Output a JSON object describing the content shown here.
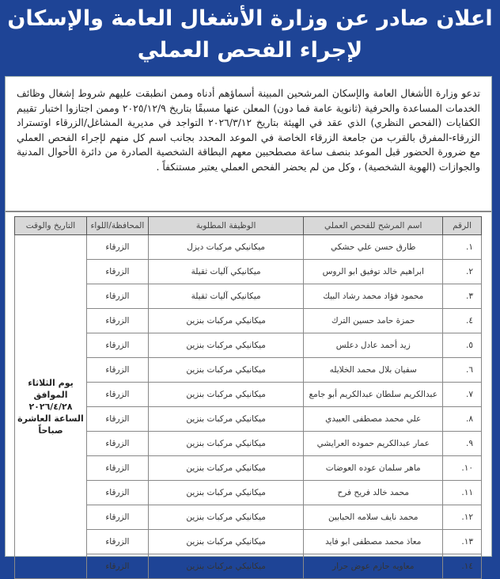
{
  "header": {
    "line1": "اعلان صادر عن وزارة الأشغال العامة والإسكان",
    "line2": "لإجراء الفحص العملي"
  },
  "body_text": "تدعو وزارة الأشغال العامة والإسكان المرشحين المبينة أسماؤهم أدناه وممن انطبقت عليهم شروط إشغال وظائف الخدمات المساعدة والحرفية (ثانوية عامة فما دون) المعلن عنها مسبقًا بتاريخ ٢٠٢٥/١٢/٩ وممن اجتازوا اختبار تقييم الكفايات (الفحص النظري) الذي عقد في الهيئة بتاريخ ٢٠٢٦/٣/١٢ التواجد في مديرية المشاغل/الزرقاء اوتستراد الزرقاء-المفرق بالقرب من جامعة الزرقاء الخاصة في الموعد المحدد بجانب اسم كل منهم لإجراء الفحص العملي مع ضرورة الحضور قبل الموعد بنصف ساعة مصطحبين معهم البطاقة الشخصية الصادرة من دائرة الأحوال المدنية والجوازات (الهوية الشخصية) ، وكل من لم يحضر الفحص العملي يعتبر مستنكفاً .",
  "table": {
    "headers": [
      "الرقم",
      "اسم المرشح للفحص العملي",
      "الوظيفة المطلوبة",
      "المحافظة/اللواء",
      "التاريخ والوقت"
    ],
    "date_cell": "يوم الثلاثاء الموافق ٢٠٢٦/٤/٢٨ الساعة العاشرة صباحاً",
    "rows": [
      {
        "num": "١.",
        "name": "طارق حسن علي حشكي",
        "job": "ميكانيكي مركبات ديزل",
        "gov": "الزرقاء"
      },
      {
        "num": "٢.",
        "name": "ابراهيم خالد توفيق ابو الروس",
        "job": "ميكانيكي آليات ثقيلة",
        "gov": "الزرقاء"
      },
      {
        "num": "٣.",
        "name": "محمود فؤاد محمد رشاد البيك",
        "job": "ميكانيكي آليات ثقيلة",
        "gov": "الزرقاء"
      },
      {
        "num": "٤.",
        "name": "حمزة حامد حسين الترك",
        "job": "ميكانيكي مركبات بنزين",
        "gov": "الزرقاء"
      },
      {
        "num": "٥.",
        "name": "زيد أحمد عادل دعلس",
        "job": "ميكانيكي مركبات بنزين",
        "gov": "الزرقاء"
      },
      {
        "num": "٦.",
        "name": "سفيان بلال محمد الخلايله",
        "job": "ميكانيكي مركبات بنزين",
        "gov": "الزرقاء"
      },
      {
        "num": "٧.",
        "name": "عبدالكريم سلطان عبدالكريم أبو جامع",
        "job": "ميكانيكي مركبات بنزين",
        "gov": "الزرقاء"
      },
      {
        "num": "٨.",
        "name": "علي محمد مصطفى العبيدي",
        "job": "ميكانيكي مركبات بنزين",
        "gov": "الزرقاء"
      },
      {
        "num": "٩.",
        "name": "عمار عبدالكريم حموده العرايشي",
        "job": "ميكانيكي مركبات بنزين",
        "gov": "الزرقاء"
      },
      {
        "num": "١٠.",
        "name": "ماهر سلمان عوده العوضات",
        "job": "ميكانيكي مركبات بنزين",
        "gov": "الزرقاء"
      },
      {
        "num": "١١.",
        "name": "محمد خالد فريح فرح",
        "job": "ميكانيكي مركبات بنزين",
        "gov": "الزرقاء"
      },
      {
        "num": "١٢.",
        "name": "محمد نايف سلامه الحبابين",
        "job": "ميكانيكي مركبات بنزين",
        "gov": "الزرقاء"
      },
      {
        "num": "١٣.",
        "name": "معاذ محمد مصطفى ابو فايد",
        "job": "ميكانيكي مركبات بنزين",
        "gov": "الزرقاء"
      },
      {
        "num": "١٤.",
        "name": "معاويه حازم عوض حرار",
        "job": "ميكانيكي مركبات بنزين",
        "gov": "الزرقاء"
      }
    ]
  },
  "colors": {
    "frame": "#1e4496",
    "header_row": "#d8d8d8"
  }
}
